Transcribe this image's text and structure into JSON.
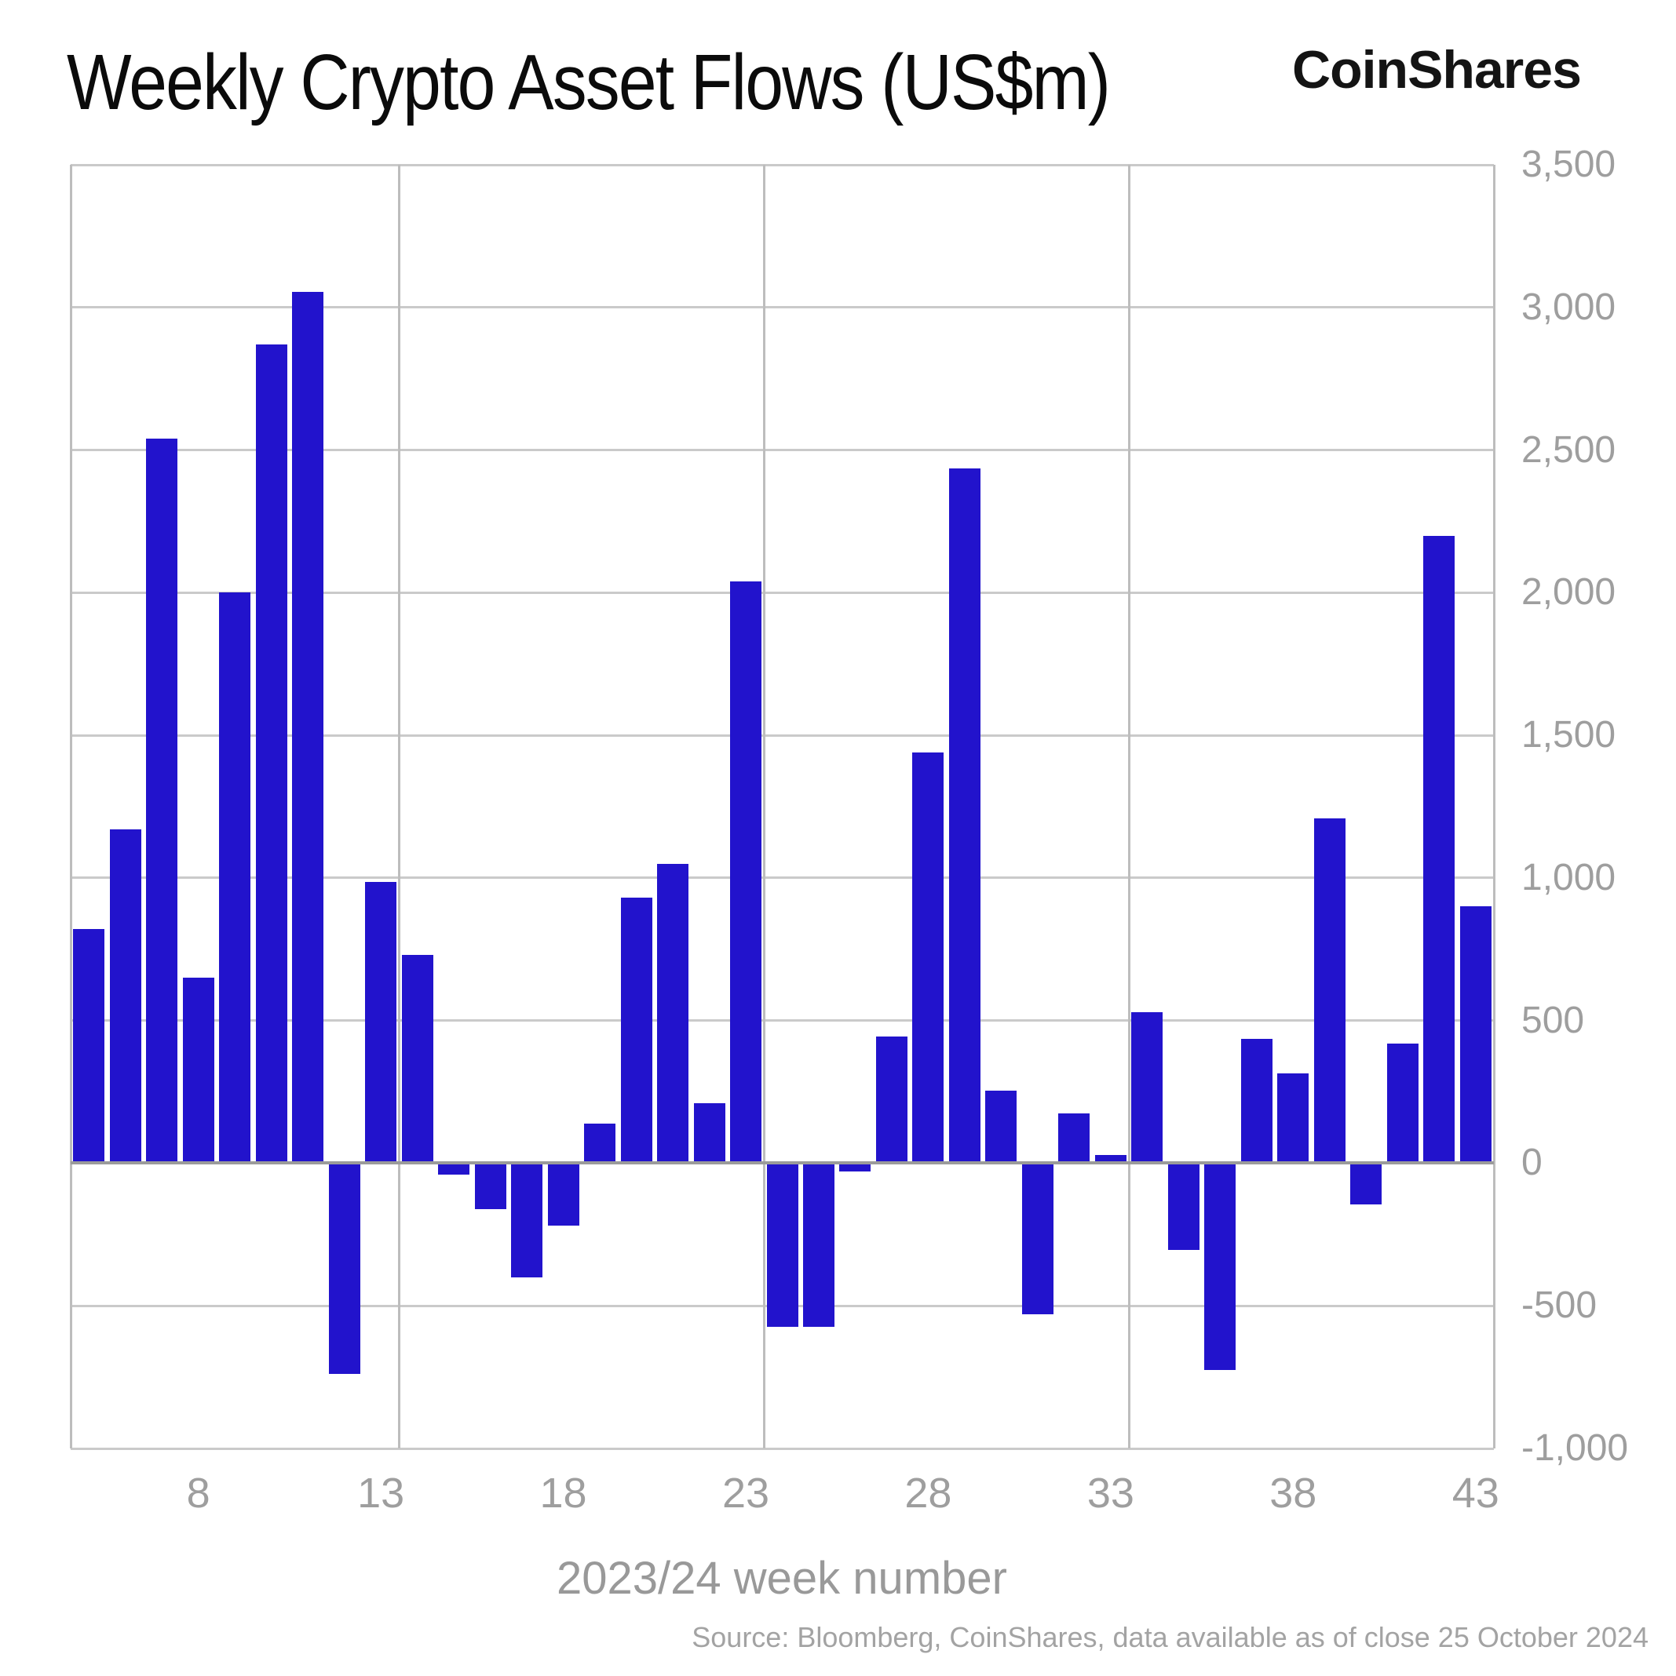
{
  "header": {
    "title": "Weekly Crypto Asset Flows (US$m)",
    "logo_text": "CoinShares"
  },
  "footer": {
    "source": "Source: Bloomberg, CoinShares, data available as of close 25 October 2024"
  },
  "colors": {
    "bar": "#2213CC",
    "gridline": "#cacaca",
    "zero_line": "#9b9b9b",
    "plot_border": "#bdbdbd",
    "tick_label": "#9e9e9e",
    "title": "#0b0b0b"
  },
  "chart_data": {
    "type": "bar",
    "title": "Weekly Crypto Asset Flows (US$m)",
    "xlabel": "2023/24 week number",
    "ylabel": "",
    "legend": null,
    "grid": true,
    "legend_position": "none",
    "y_axis_side": "right",
    "xlim": [
      4.5,
      43.5
    ],
    "ylim": [
      -1000,
      3500
    ],
    "y_ticks": [
      3500,
      3000,
      2500,
      2000,
      1500,
      1000,
      500,
      0,
      -500,
      -1000
    ],
    "y_tick_labels": [
      "3,500",
      "3,000",
      "2,500",
      "2,000",
      "1,500",
      "1,000",
      "500",
      "0",
      "-500",
      "-1,000"
    ],
    "x_ticks": [
      8,
      13,
      18,
      23,
      28,
      33,
      38,
      43
    ],
    "x_tick_labels": [
      "8",
      "13",
      "18",
      "23",
      "28",
      "33",
      "38",
      "43"
    ],
    "vertical_gridlines_weeks": [
      13.5,
      23.5,
      33.5
    ],
    "categories": [
      5,
      6,
      7,
      8,
      9,
      10,
      11,
      12,
      13,
      14,
      15,
      16,
      17,
      18,
      19,
      20,
      21,
      22,
      23,
      24,
      25,
      26,
      27,
      28,
      29,
      30,
      31,
      32,
      33,
      34,
      35,
      36,
      37,
      38,
      39,
      40,
      41,
      42,
      43
    ],
    "values": [
      820,
      1170,
      2540,
      650,
      2000,
      2870,
      3055,
      -740,
      985,
      730,
      -40,
      -160,
      -400,
      -220,
      140,
      930,
      1050,
      210,
      2040,
      -575,
      -575,
      -30,
      445,
      1440,
      2435,
      255,
      -530,
      175,
      30,
      530,
      -305,
      -725,
      435,
      315,
      1210,
      -145,
      420,
      2200,
      901
    ]
  }
}
